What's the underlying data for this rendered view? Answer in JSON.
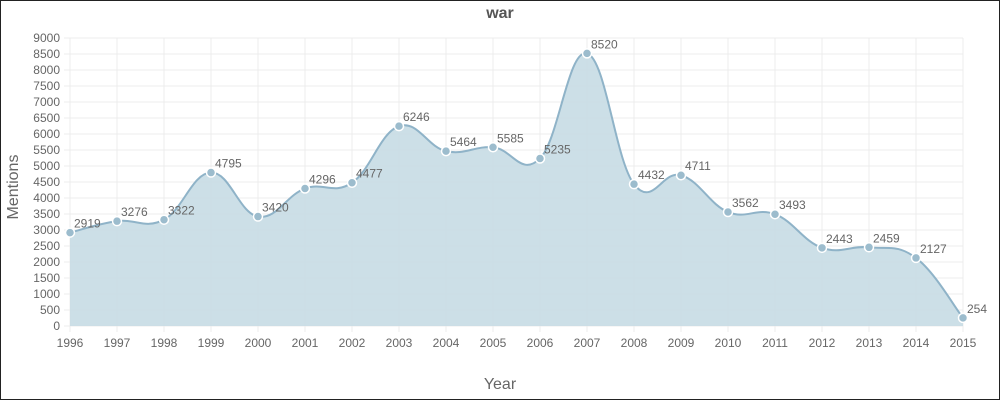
{
  "chart_data": {
    "type": "area",
    "title": "war",
    "xlabel": "Year",
    "ylabel": "Mentions",
    "categories": [
      "1996",
      "1997",
      "1998",
      "1999",
      "2000",
      "2001",
      "2002",
      "2003",
      "2004",
      "2005",
      "2006",
      "2007",
      "2008",
      "2009",
      "2010",
      "2011",
      "2012",
      "2013",
      "2014",
      "2015"
    ],
    "series": [
      {
        "values": [
          2919,
          3276,
          3322,
          4795,
          3420,
          4296,
          4477,
          6246,
          5464,
          5585,
          5235,
          8520,
          4432,
          4711,
          3562,
          3493,
          2443,
          2459,
          2127,
          254
        ]
      }
    ],
    "ylim": [
      0,
      9000
    ],
    "yticks": [
      "0",
      "500",
      "1000",
      "1500",
      "2000",
      "2500",
      "3000",
      "3500",
      "4000",
      "4500",
      "5000",
      "5500",
      "6000",
      "6500",
      "7000",
      "7500",
      "8000",
      "8500",
      "9000"
    ],
    "grid": true,
    "colors": {
      "line": "#8fb3c8",
      "fill": "#c9dde6",
      "point": "#9cbccd"
    }
  }
}
